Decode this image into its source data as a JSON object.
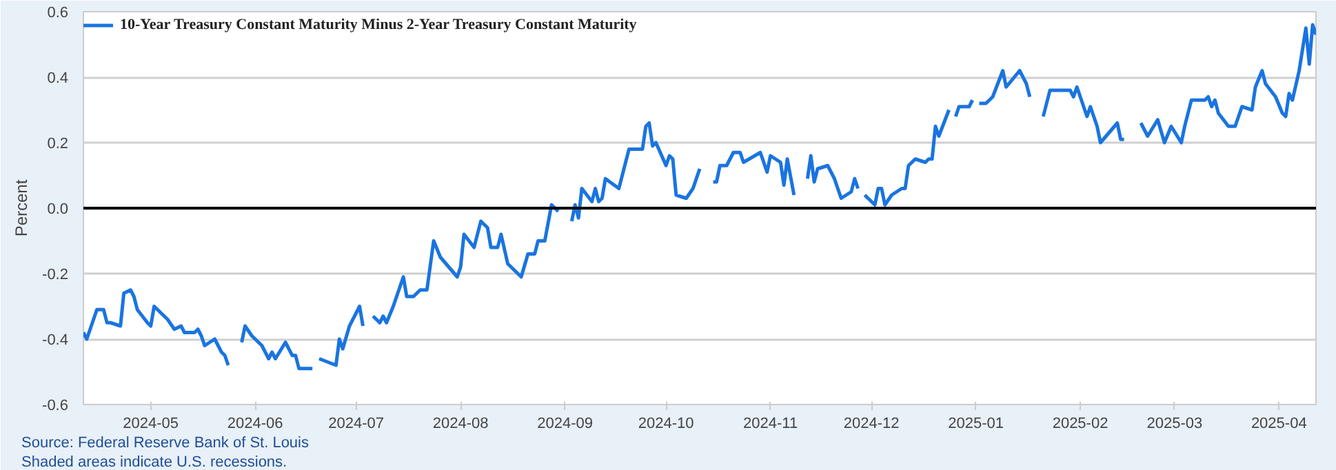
{
  "chart_data": {
    "type": "line",
    "ylabel": "Percent",
    "legend": "top left",
    "grid": "y",
    "marker": "none",
    "line_style": "solid",
    "annotations": [
      "Source: Federal Reserve Bank of St. Louis",
      "Shaded areas indicate U.S. recessions."
    ],
    "xlim": [
      "2024-04-11",
      "2025-04-12"
    ],
    "xticks": [
      "2024-05",
      "2024-06",
      "2024-07",
      "2024-08",
      "2024-09",
      "2024-10",
      "2024-11",
      "2024-12",
      "2025-01",
      "2025-02",
      "2025-03",
      "2025-04"
    ],
    "ylim": [
      -0.6,
      0.6
    ],
    "yticks": [
      -0.6,
      -0.4,
      -0.2,
      {
        "value": 0,
        "label": "0.0"
      },
      0.2,
      0.4,
      0.6
    ],
    "ref_lines": [
      {
        "axis": "y",
        "value": 0,
        "label": null,
        "color": "#000000"
      }
    ],
    "x": [
      "2024-04-11",
      "2024-04-12",
      "2024-04-15",
      "2024-04-17",
      "2024-04-18",
      "2024-04-19",
      "2024-04-22",
      "2024-04-23",
      "2024-04-25",
      "2024-04-26",
      "2024-04-27",
      "2024-04-30",
      "2024-05-01",
      "2024-05-02",
      "2024-05-04",
      "2024-05-06",
      "2024-05-08",
      "2024-05-10",
      "2024-05-11",
      "2024-05-14",
      "2024-05-15",
      "2024-05-16",
      "2024-05-17",
      "2024-05-20",
      "2024-05-22",
      "2024-05-23",
      "2024-05-24",
      "2024-05-27",
      "2024-05-28",
      "2024-05-29",
      "2024-05-31",
      "2024-06-03",
      "2024-06-05",
      "2024-06-06",
      "2024-06-07",
      "2024-06-10",
      "2024-06-12",
      "2024-06-13",
      "2024-06-14",
      "2024-06-18",
      "2024-06-19",
      "2024-06-20",
      "2024-06-25",
      "2024-06-26",
      "2024-06-27",
      "2024-06-29",
      "2024-07-02",
      "2024-07-03",
      "2024-07-04",
      "2024-07-06",
      "2024-07-08",
      "2024-07-09",
      "2024-07-10",
      "2024-07-12",
      "2024-07-15",
      "2024-07-16",
      "2024-07-18",
      "2024-07-20",
      "2024-07-22",
      "2024-07-24",
      "2024-07-26",
      "2024-07-31",
      "2024-08-01",
      "2024-08-02",
      "2024-08-05",
      "2024-08-07",
      "2024-08-09",
      "2024-08-10",
      "2024-08-12",
      "2024-08-13",
      "2024-08-15",
      "2024-08-19",
      "2024-08-21",
      "2024-08-23",
      "2024-08-24",
      "2024-08-26",
      "2024-08-28",
      "2024-08-30",
      "2024-09-02",
      "2024-09-03",
      "2024-09-04",
      "2024-09-05",
      "2024-09-06",
      "2024-09-09",
      "2024-09-10",
      "2024-09-11",
      "2024-09-12",
      "2024-09-13",
      "2024-09-17",
      "2024-09-20",
      "2024-09-24",
      "2024-09-25",
      "2024-09-26",
      "2024-09-27",
      "2024-09-28",
      "2024-10-01",
      "2024-10-02",
      "2024-10-03",
      "2024-10-04",
      "2024-10-07",
      "2024-10-09",
      "2024-10-11",
      "2024-10-14",
      "2024-10-15",
      "2024-10-16",
      "2024-10-17",
      "2024-10-19",
      "2024-10-21",
      "2024-10-23",
      "2024-10-24",
      "2024-10-29",
      "2024-10-31",
      "2024-11-01",
      "2024-11-04",
      "2024-11-05",
      "2024-11-06",
      "2024-11-08",
      "2024-11-11",
      "2024-11-12",
      "2024-11-13",
      "2024-11-14",
      "2024-11-15",
      "2024-11-18",
      "2024-11-20",
      "2024-11-22",
      "2024-11-25",
      "2024-11-26",
      "2024-11-27",
      "2024-11-28",
      "2024-11-29",
      "2024-12-02",
      "2024-12-03",
      "2024-12-04",
      "2024-12-05",
      "2024-12-07",
      "2024-12-10",
      "2024-12-11",
      "2024-12-12",
      "2024-12-13",
      "2024-12-14",
      "2024-12-17",
      "2024-12-18",
      "2024-12-19",
      "2024-12-20",
      "2024-12-21",
      "2024-12-24",
      "2024-12-25",
      "2024-12-26",
      "2024-12-27",
      "2024-12-30",
      "2024-12-31",
      "2025-01-01",
      "2025-01-02",
      "2025-01-04",
      "2025-01-06",
      "2025-01-09",
      "2025-01-10",
      "2025-01-14",
      "2025-01-16",
      "2025-01-17",
      "2025-01-20",
      "2025-01-21",
      "2025-01-23",
      "2025-01-29",
      "2025-01-30",
      "2025-01-31",
      "2025-02-03",
      "2025-02-04",
      "2025-02-06",
      "2025-02-07",
      "2025-02-12",
      "2025-02-13",
      "2025-02-14",
      "2025-02-17",
      "2025-02-19",
      "2025-02-21",
      "2025-02-24",
      "2025-02-26",
      "2025-02-28",
      "2025-03-03",
      "2025-03-04",
      "2025-03-06",
      "2025-03-10",
      "2025-03-11",
      "2025-03-12",
      "2025-03-13",
      "2025-03-14",
      "2025-03-17",
      "2025-03-19",
      "2025-03-21",
      "2025-03-24",
      "2025-03-25",
      "2025-03-27",
      "2025-03-28",
      "2025-03-31",
      "2025-04-02",
      "2025-04-03",
      "2025-04-04",
      "2025-04-05",
      "2025-04-07",
      "2025-04-09",
      "2025-04-10",
      "2025-04-11",
      "2025-04-12"
    ],
    "series": [
      {
        "name": "10-Year Treasury Constant Maturity Minus 2-Year Treasury Constant Maturity",
        "color": "#1a74e0",
        "values": [
          -0.38,
          -0.4,
          -0.31,
          -0.31,
          -0.35,
          -0.35,
          -0.36,
          -0.26,
          -0.25,
          -0.27,
          -0.31,
          -0.35,
          -0.36,
          -0.3,
          -0.32,
          -0.34,
          -0.37,
          -0.36,
          -0.38,
          -0.38,
          -0.37,
          -0.39,
          -0.42,
          -0.4,
          -0.44,
          -0.45,
          -0.48,
          null,
          -0.41,
          -0.36,
          -0.39,
          -0.42,
          -0.46,
          -0.44,
          -0.46,
          -0.41,
          -0.45,
          -0.45,
          -0.49,
          -0.49,
          null,
          -0.46,
          -0.48,
          -0.4,
          -0.43,
          -0.36,
          -0.3,
          -0.36,
          null,
          -0.33,
          -0.35,
          -0.33,
          -0.35,
          -0.3,
          -0.21,
          -0.27,
          -0.27,
          -0.25,
          -0.25,
          -0.1,
          -0.15,
          -0.21,
          -0.18,
          -0.08,
          -0.12,
          -0.04,
          -0.06,
          -0.12,
          -0.12,
          -0.08,
          -0.17,
          -0.21,
          -0.14,
          -0.14,
          -0.1,
          -0.1,
          0.01,
          -0.01,
          null,
          -0.04,
          0.01,
          -0.03,
          0.06,
          0.02,
          0.06,
          0.02,
          0.03,
          0.09,
          0.06,
          0.18,
          0.18,
          0.25,
          0.26,
          0.19,
          0.2,
          0.13,
          0.16,
          0.15,
          0.04,
          0.03,
          0.06,
          0.12,
          null,
          0.08,
          0.08,
          0.13,
          0.13,
          0.17,
          0.17,
          0.14,
          0.17,
          0.11,
          0.16,
          0.14,
          0.07,
          0.15,
          0.04,
          null,
          0.09,
          0.16,
          0.08,
          0.12,
          0.13,
          0.09,
          0.03,
          0.05,
          0.09,
          0.06,
          null,
          0.04,
          0.01,
          0.06,
          0.06,
          0.01,
          0.04,
          0.06,
          0.06,
          0.13,
          0.14,
          0.15,
          0.14,
          0.15,
          0.15,
          0.25,
          0.22,
          0.3,
          null,
          0.28,
          0.31,
          0.31,
          0.33,
          null,
          0.32,
          0.32,
          0.34,
          0.42,
          0.37,
          0.42,
          0.38,
          0.34,
          null,
          0.28,
          0.36,
          0.36,
          0.34,
          0.37,
          0.28,
          0.31,
          0.25,
          0.2,
          0.26,
          0.21,
          0.21,
          null,
          0.26,
          0.22,
          0.27,
          0.2,
          0.25,
          0.2,
          0.25,
          0.33,
          0.33,
          0.34,
          0.31,
          0.33,
          0.29,
          0.25,
          0.25,
          0.31,
          0.3,
          0.37,
          0.42,
          0.38,
          0.34,
          0.29,
          0.28,
          0.35,
          0.33,
          0.42,
          0.55,
          0.44,
          0.56,
          0.53
        ]
      }
    ]
  }
}
